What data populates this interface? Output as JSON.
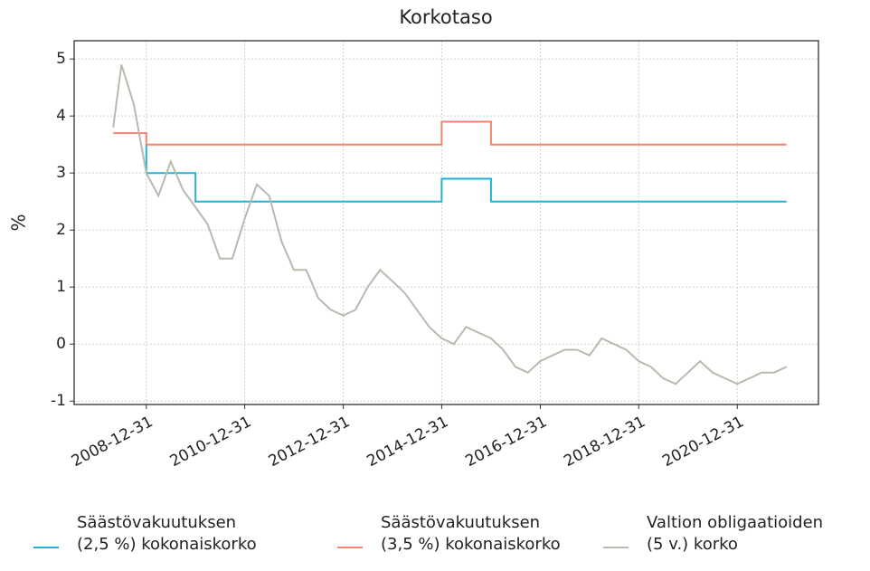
{
  "chart_data": {
    "type": "line",
    "title": "Korkotaso",
    "y_label": "%",
    "xlim": [
      "2007-07-15",
      "2022-08-25"
    ],
    "ylim": [
      -1.06,
      5.32
    ],
    "xticks": [
      "2008-12-31",
      "2010-12-31",
      "2012-12-31",
      "2014-12-31",
      "2016-12-31",
      "2018-12-31",
      "2020-12-31"
    ],
    "yticks": [
      -1,
      0,
      1,
      2,
      3,
      4,
      5
    ],
    "grid": true,
    "legend": "bottom",
    "series": [
      {
        "name": "Säästövakuutuksen\n(2,5 %) kokonaiskorko",
        "color": "#1fb2d3",
        "x": [
          "2008-12-31",
          "2008-12-31",
          "2009-12-31",
          "2009-12-31",
          "2014-12-31",
          "2014-12-31",
          "2015-12-31",
          "2015-12-31",
          "2021-12-31"
        ],
        "values": [
          3.5,
          3.0,
          3.0,
          2.5,
          2.5,
          2.9,
          2.9,
          2.5,
          2.5
        ]
      },
      {
        "name": "Säästövakuutuksen\n(3,5 %) kokonaiskorko",
        "color": "#f4836f",
        "x": [
          "2008-04-30",
          "2008-12-31",
          "2008-12-31",
          "2014-12-31",
          "2014-12-31",
          "2015-12-31",
          "2015-12-31",
          "2021-12-31"
        ],
        "values": [
          3.7,
          3.7,
          3.5,
          3.5,
          3.9,
          3.9,
          3.5,
          3.5
        ]
      },
      {
        "name": "Valtion obligaatioiden\n(5 v.) korko",
        "color": "#b5bcae",
        "x": [
          "2008-04-30",
          "2008-06-30",
          "2008-09-30",
          "2008-12-31",
          "2009-03-31",
          "2009-06-30",
          "2009-09-30",
          "2009-12-31",
          "2010-03-31",
          "2010-06-30",
          "2010-09-30",
          "2010-12-31",
          "2011-03-31",
          "2011-06-30",
          "2011-09-30",
          "2011-12-31",
          "2012-03-31",
          "2012-06-30",
          "2012-09-30",
          "2012-12-31",
          "2013-03-31",
          "2013-06-30",
          "2013-09-30",
          "2013-12-31",
          "2014-03-31",
          "2014-06-30",
          "2014-09-30",
          "2014-12-31",
          "2015-03-31",
          "2015-06-30",
          "2015-09-30",
          "2015-12-31",
          "2016-03-31",
          "2016-06-30",
          "2016-09-30",
          "2016-12-31",
          "2017-03-31",
          "2017-06-30",
          "2017-09-30",
          "2017-12-31",
          "2018-03-31",
          "2018-06-30",
          "2018-09-30",
          "2018-12-31",
          "2019-03-31",
          "2019-06-30",
          "2019-09-30",
          "2019-12-31",
          "2020-03-31",
          "2020-06-30",
          "2020-09-30",
          "2020-12-31",
          "2021-03-31",
          "2021-06-30",
          "2021-09-30",
          "2021-12-31"
        ],
        "values": [
          3.8,
          4.9,
          4.2,
          3.0,
          2.6,
          3.2,
          2.7,
          2.4,
          2.1,
          1.5,
          1.5,
          2.2,
          2.8,
          2.6,
          1.8,
          1.3,
          1.3,
          0.8,
          0.6,
          0.5,
          0.6,
          1.0,
          1.3,
          1.1,
          0.9,
          0.6,
          0.3,
          0.1,
          0.0,
          0.3,
          0.2,
          0.1,
          -0.1,
          -0.4,
          -0.5,
          -0.3,
          -0.2,
          -0.1,
          -0.1,
          -0.2,
          0.1,
          0.0,
          -0.1,
          -0.3,
          -0.4,
          -0.6,
          -0.7,
          -0.5,
          -0.3,
          -0.5,
          -0.6,
          -0.7,
          -0.6,
          -0.5,
          -0.5,
          -0.4
        ]
      }
    ]
  }
}
